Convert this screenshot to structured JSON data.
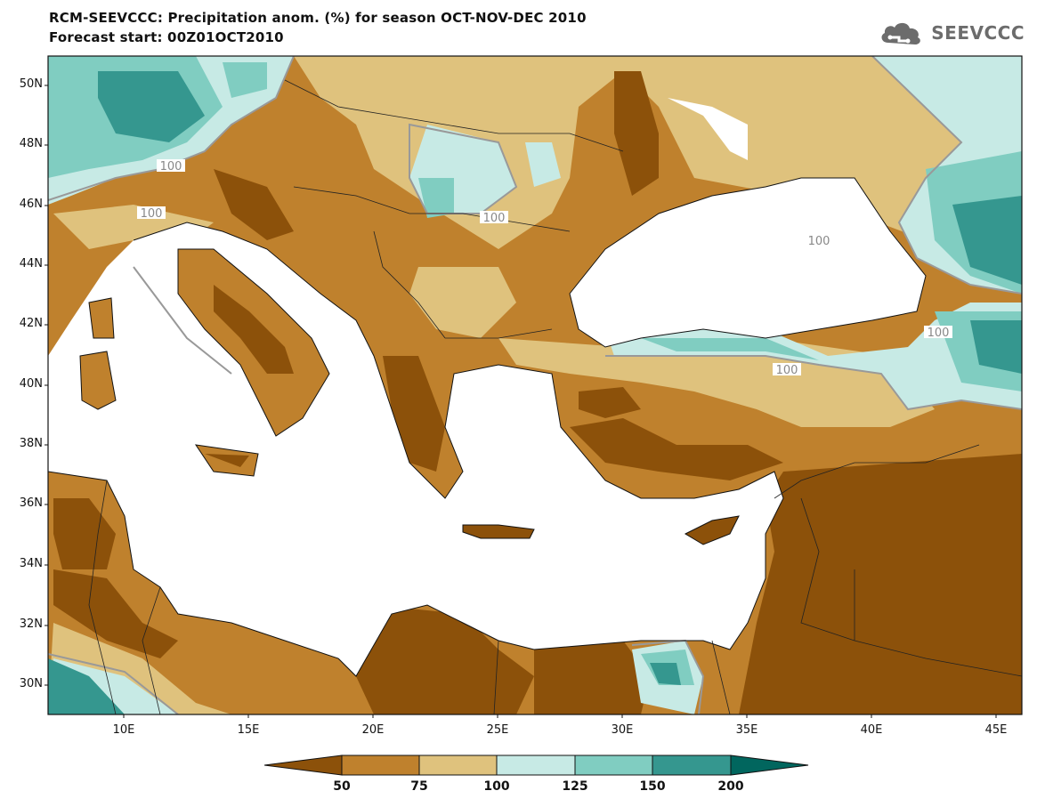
{
  "header": {
    "title_line1": "RCM-SEEVCCC: Precipitation anom. (%) for season OCT-NOV-DEC 2010",
    "title_line2": "Forecast start: 00Z01OCT2010",
    "logo_text": "SEEVCCC"
  },
  "map": {
    "lat_labels": [
      "50N",
      "48N",
      "46N",
      "44N",
      "42N",
      "40N",
      "38N",
      "36N",
      "34N",
      "32N",
      "30N"
    ],
    "lon_labels": [
      "10E",
      "15E",
      "20E",
      "25E",
      "30E",
      "35E",
      "40E",
      "45E"
    ],
    "contour_labels": [
      "100",
      "100",
      "100",
      "100",
      "100",
      "100"
    ]
  },
  "colorbar": {
    "ticks": [
      "50",
      "75",
      "100",
      "125",
      "150",
      "200"
    ],
    "colors": [
      "#8c510a",
      "#bf812d",
      "#dfc27d",
      "#c7eae5",
      "#80cdc1",
      "#35978f",
      "#01665e"
    ]
  },
  "palette": {
    "very_dry": "#8c510a",
    "dry": "#bf812d",
    "slightly_dry": "#dfc27d",
    "slightly_wet": "#c7eae5",
    "wet": "#80cdc1",
    "very_wet": "#35978f",
    "extreme_wet": "#01665e",
    "sea": "#ffffff"
  }
}
